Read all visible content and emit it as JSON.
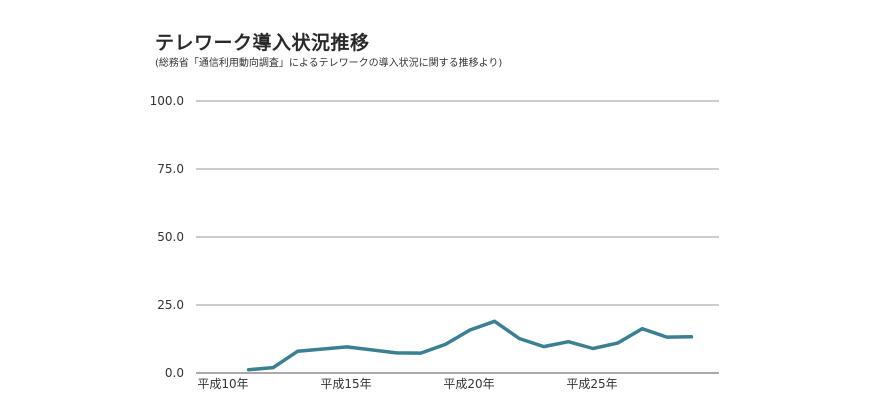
{
  "chart_data": {
    "type": "line",
    "title": "テレワーク導入状況推移",
    "subtitle": "(総務省「通信利用動向調査」によるテレワークの導入状況に関する推移より)",
    "xlabel": "",
    "ylabel": "",
    "ylim": [
      0,
      100
    ],
    "y_ticks": [
      "100.0",
      "75.0",
      "50.0",
      "25.0",
      "0.0"
    ],
    "x_tick_labels": [
      {
        "label": "平成10年",
        "year": 10
      },
      {
        "label": "平成15年",
        "year": 15
      },
      {
        "label": "平成20年",
        "year": 20
      },
      {
        "label": "平成25年",
        "year": 25
      }
    ],
    "grid": true,
    "line_color": "#3a7f92",
    "series": [
      {
        "x": [
          11,
          12,
          13,
          15,
          17,
          18,
          19,
          20,
          21,
          22,
          23,
          24,
          25,
          26,
          27,
          28,
          29
        ],
        "values": [
          1.2,
          2.0,
          8.0,
          9.6,
          7.4,
          7.3,
          10.5,
          15.8,
          19.0,
          12.7,
          9.7,
          11.5,
          9.0,
          11.0,
          16.3,
          13.2,
          13.3
        ]
      }
    ]
  }
}
